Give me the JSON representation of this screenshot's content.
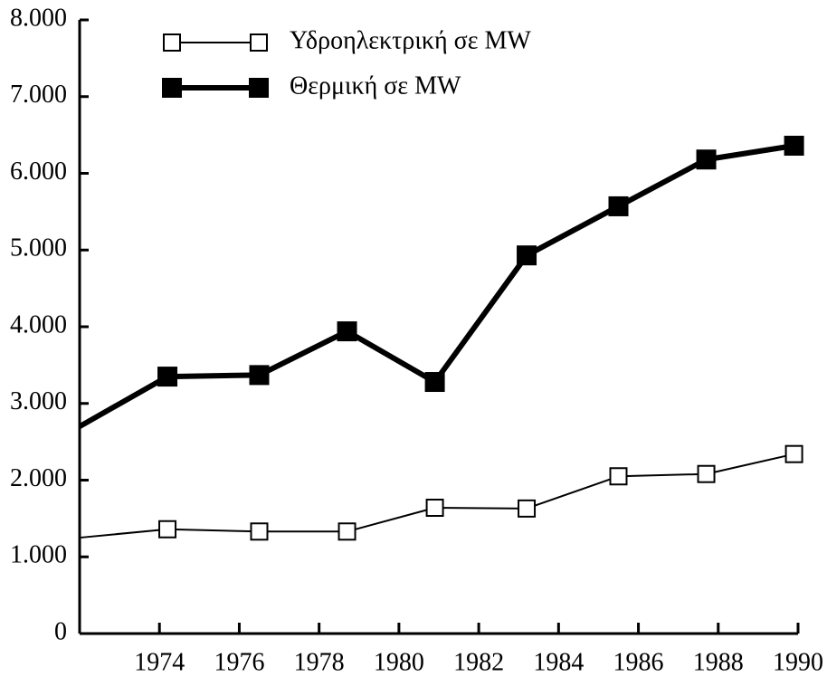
{
  "chart_data": {
    "type": "line",
    "series": [
      {
        "name": "Υδροηλεκτρική σε MW",
        "color": "#000000",
        "marker": "hollow-square",
        "line_width": 2,
        "x": [
          1972,
          1974.2,
          1976.5,
          1978.7,
          1980.9,
          1983.2,
          1985.5,
          1987.7,
          1989.9
        ],
        "values": [
          1250,
          1360,
          1330,
          1330,
          1640,
          1630,
          2050,
          2080,
          2340
        ]
      },
      {
        "name": "Θερμική σε MW",
        "color": "#000000",
        "marker": "filled-square",
        "line_width": 6,
        "x": [
          1972,
          1974.2,
          1976.5,
          1978.7,
          1980.9,
          1983.2,
          1985.5,
          1987.7,
          1989.9
        ],
        "values": [
          2700,
          3350,
          3370,
          3940,
          3280,
          4930,
          5570,
          6180,
          6360
        ]
      }
    ],
    "xlim": [
      1972,
      1990
    ],
    "xticks": [
      1974,
      1976,
      1978,
      1980,
      1982,
      1984,
      1986,
      1988,
      1990
    ],
    "ylim": [
      0,
      8000
    ],
    "yticks": [
      0,
      {
        "value": 1000,
        "label": "1.000"
      },
      {
        "value": 2000,
        "label": "2.000"
      },
      {
        "value": 3000,
        "label": "3.000"
      },
      {
        "value": 4000,
        "label": "4.000"
      },
      {
        "value": 5000,
        "label": "5.000"
      },
      {
        "value": 6000,
        "label": "6.000"
      },
      {
        "value": 7000,
        "label": "7.000"
      },
      {
        "value": 8000,
        "label": "8.000"
      }
    ],
    "legend": "top-left"
  }
}
